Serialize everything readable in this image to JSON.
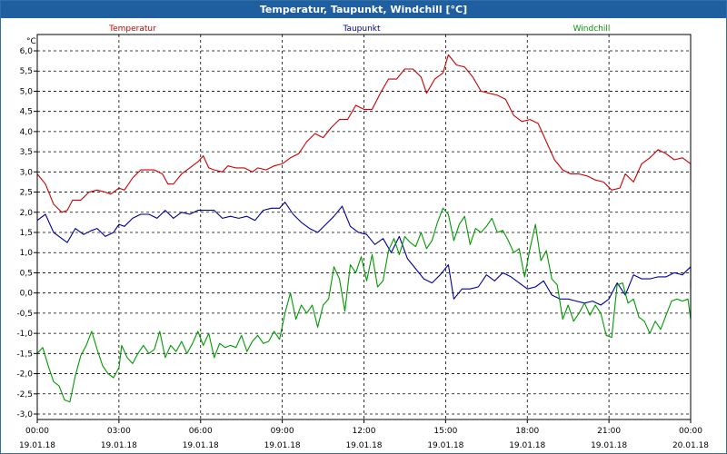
{
  "window": {
    "title": "Temperatur, Taupunkt, Windchill [°C]"
  },
  "chart_data": {
    "type": "line",
    "title": "Temperatur, Taupunkt, Windchill [°C]",
    "ylabel": "°C",
    "ylim": [
      -3.0,
      6.0
    ],
    "yticks": [
      "6,0",
      "5,5",
      "5,0",
      "4,5",
      "4,0",
      "3,5",
      "3,0",
      "2,5",
      "2,0",
      "1,5",
      "1,0",
      "0,5",
      "0,0",
      "-0,5",
      "-1,0",
      "-1,5",
      "-2,0",
      "-2,5",
      "-3,0"
    ],
    "xlim": [
      0,
      24
    ],
    "xticks": [
      {
        "time": "00:00",
        "date": "19.01.18"
      },
      {
        "time": "03:00",
        "date": "19.01.18"
      },
      {
        "time": "06:00",
        "date": "19.01.18"
      },
      {
        "time": "09:00",
        "date": "19.01.18"
      },
      {
        "time": "12:00",
        "date": "19.01.18"
      },
      {
        "time": "15:00",
        "date": "19.01.18"
      },
      {
        "time": "18:00",
        "date": "19.01.18"
      },
      {
        "time": "21:00",
        "date": "19.01.18"
      },
      {
        "time": "00:00",
        "date": "20.01.18"
      }
    ],
    "grid": true,
    "legend_position": "top",
    "series": [
      {
        "name": "Temperatur",
        "color": "#cc0000",
        "points": [
          [
            0,
            2.95
          ],
          [
            0.3,
            2.7
          ],
          [
            0.6,
            2.2
          ],
          [
            0.9,
            2.0
          ],
          [
            1.1,
            2.05
          ],
          [
            1.3,
            2.3
          ],
          [
            1.6,
            2.3
          ],
          [
            1.9,
            2.5
          ],
          [
            2.2,
            2.55
          ],
          [
            2.5,
            2.5
          ],
          [
            2.7,
            2.45
          ],
          [
            3.0,
            2.6
          ],
          [
            3.2,
            2.55
          ],
          [
            3.5,
            2.85
          ],
          [
            3.8,
            3.05
          ],
          [
            4.3,
            3.05
          ],
          [
            4.6,
            2.95
          ],
          [
            4.8,
            2.7
          ],
          [
            5.0,
            2.7
          ],
          [
            5.3,
            2.95
          ],
          [
            5.6,
            3.1
          ],
          [
            5.9,
            3.25
          ],
          [
            6.1,
            3.4
          ],
          [
            6.3,
            3.1
          ],
          [
            6.5,
            3.05
          ],
          [
            6.8,
            3.0
          ],
          [
            7.0,
            3.15
          ],
          [
            7.3,
            3.1
          ],
          [
            7.6,
            3.1
          ],
          [
            7.9,
            3.0
          ],
          [
            8.1,
            3.1
          ],
          [
            8.4,
            3.05
          ],
          [
            8.7,
            3.15
          ],
          [
            9.0,
            3.2
          ],
          [
            9.3,
            3.35
          ],
          [
            9.6,
            3.45
          ],
          [
            9.9,
            3.75
          ],
          [
            10.2,
            3.95
          ],
          [
            10.5,
            3.85
          ],
          [
            10.8,
            4.1
          ],
          [
            11.1,
            4.3
          ],
          [
            11.4,
            4.3
          ],
          [
            11.7,
            4.65
          ],
          [
            12.0,
            4.55
          ],
          [
            12.3,
            4.55
          ],
          [
            12.6,
            4.95
          ],
          [
            12.9,
            5.3
          ],
          [
            13.2,
            5.3
          ],
          [
            13.5,
            5.55
          ],
          [
            13.8,
            5.55
          ],
          [
            14.1,
            5.35
          ],
          [
            14.3,
            4.95
          ],
          [
            14.6,
            5.3
          ],
          [
            14.9,
            5.45
          ],
          [
            15.1,
            5.9
          ],
          [
            15.4,
            5.65
          ],
          [
            15.7,
            5.6
          ],
          [
            16.0,
            5.35
          ],
          [
            16.3,
            5.0
          ],
          [
            16.6,
            4.95
          ],
          [
            16.9,
            4.9
          ],
          [
            17.2,
            4.8
          ],
          [
            17.5,
            4.4
          ],
          [
            17.8,
            4.25
          ],
          [
            18.1,
            4.3
          ],
          [
            18.4,
            4.2
          ],
          [
            18.7,
            3.75
          ],
          [
            19.0,
            3.3
          ],
          [
            19.3,
            3.05
          ],
          [
            19.6,
            2.95
          ],
          [
            19.9,
            2.95
          ],
          [
            20.2,
            2.9
          ],
          [
            20.5,
            2.8
          ],
          [
            20.8,
            2.75
          ],
          [
            21.1,
            2.55
          ],
          [
            21.4,
            2.6
          ],
          [
            21.6,
            2.95
          ],
          [
            21.9,
            2.75
          ],
          [
            22.2,
            3.2
          ],
          [
            22.5,
            3.35
          ],
          [
            22.8,
            3.55
          ],
          [
            23.1,
            3.45
          ],
          [
            23.4,
            3.3
          ],
          [
            23.7,
            3.35
          ],
          [
            24.0,
            3.2
          ],
          [
            24.3,
            2.85
          ],
          [
            24.5,
            2.7
          ]
        ]
      },
      {
        "name": "Taupunkt",
        "color": "#000099",
        "points": [
          [
            0,
            1.8
          ],
          [
            0.3,
            1.95
          ],
          [
            0.6,
            1.5
          ],
          [
            0.9,
            1.35
          ],
          [
            1.1,
            1.25
          ],
          [
            1.4,
            1.6
          ],
          [
            1.7,
            1.45
          ],
          [
            2.0,
            1.55
          ],
          [
            2.2,
            1.6
          ],
          [
            2.5,
            1.4
          ],
          [
            2.8,
            1.5
          ],
          [
            3.0,
            1.7
          ],
          [
            3.2,
            1.65
          ],
          [
            3.5,
            1.85
          ],
          [
            3.8,
            1.95
          ],
          [
            4.1,
            1.95
          ],
          [
            4.4,
            1.85
          ],
          [
            4.7,
            2.05
          ],
          [
            5.0,
            1.85
          ],
          [
            5.3,
            2.0
          ],
          [
            5.6,
            1.95
          ],
          [
            5.9,
            2.05
          ],
          [
            6.2,
            2.05
          ],
          [
            6.5,
            2.05
          ],
          [
            6.8,
            1.85
          ],
          [
            7.1,
            1.9
          ],
          [
            7.4,
            1.85
          ],
          [
            7.7,
            1.9
          ],
          [
            8.0,
            1.8
          ],
          [
            8.3,
            2.05
          ],
          [
            8.6,
            2.1
          ],
          [
            8.9,
            2.1
          ],
          [
            9.1,
            2.25
          ],
          [
            9.4,
            1.95
          ],
          [
            9.7,
            1.75
          ],
          [
            10.0,
            1.6
          ],
          [
            10.3,
            1.5
          ],
          [
            10.6,
            1.7
          ],
          [
            10.9,
            1.9
          ],
          [
            11.2,
            2.15
          ],
          [
            11.5,
            1.65
          ],
          [
            11.8,
            1.5
          ],
          [
            12.1,
            1.45
          ],
          [
            12.4,
            1.2
          ],
          [
            12.7,
            1.35
          ],
          [
            13.0,
            1.0
          ],
          [
            13.3,
            1.4
          ],
          [
            13.6,
            0.85
          ],
          [
            13.9,
            0.6
          ],
          [
            14.2,
            0.35
          ],
          [
            14.5,
            0.25
          ],
          [
            14.8,
            0.45
          ],
          [
            15.1,
            0.7
          ],
          [
            15.3,
            -0.15
          ],
          [
            15.6,
            0.1
          ],
          [
            15.9,
            0.1
          ],
          [
            16.2,
            0.15
          ],
          [
            16.5,
            0.45
          ],
          [
            16.8,
            0.3
          ],
          [
            17.1,
            0.5
          ],
          [
            17.4,
            0.4
          ],
          [
            17.7,
            0.25
          ],
          [
            18.0,
            0.1
          ],
          [
            18.3,
            0.15
          ],
          [
            18.6,
            0.3
          ],
          [
            18.9,
            -0.05
          ],
          [
            19.2,
            -0.15
          ],
          [
            19.5,
            -0.15
          ],
          [
            19.8,
            -0.2
          ],
          [
            20.1,
            -0.25
          ],
          [
            20.4,
            -0.2
          ],
          [
            20.7,
            -0.3
          ],
          [
            21.0,
            -0.15
          ],
          [
            21.3,
            0.25
          ],
          [
            21.6,
            -0.05
          ],
          [
            21.9,
            0.45
          ],
          [
            22.2,
            0.35
          ],
          [
            22.5,
            0.35
          ],
          [
            22.8,
            0.4
          ],
          [
            23.1,
            0.4
          ],
          [
            23.4,
            0.5
          ],
          [
            23.7,
            0.45
          ],
          [
            24.0,
            0.65
          ],
          [
            24.2,
            0.5
          ],
          [
            24.4,
            0.15
          ],
          [
            24.6,
            0.1
          ]
        ]
      },
      {
        "name": "Windchill",
        "color": "#009900",
        "points": [
          [
            0,
            -1.5
          ],
          [
            0.2,
            -1.35
          ],
          [
            0.4,
            -1.8
          ],
          [
            0.6,
            -2.2
          ],
          [
            0.8,
            -2.3
          ],
          [
            1.0,
            -2.65
          ],
          [
            1.2,
            -2.7
          ],
          [
            1.4,
            -2.05
          ],
          [
            1.6,
            -1.55
          ],
          [
            1.8,
            -1.3
          ],
          [
            2.0,
            -0.95
          ],
          [
            2.2,
            -1.4
          ],
          [
            2.4,
            -1.8
          ],
          [
            2.6,
            -2.0
          ],
          [
            2.8,
            -2.1
          ],
          [
            3.0,
            -1.85
          ],
          [
            3.1,
            -1.3
          ],
          [
            3.3,
            -1.6
          ],
          [
            3.5,
            -1.75
          ],
          [
            3.7,
            -1.5
          ],
          [
            3.9,
            -1.3
          ],
          [
            4.1,
            -1.5
          ],
          [
            4.3,
            -1.4
          ],
          [
            4.5,
            -0.95
          ],
          [
            4.7,
            -1.6
          ],
          [
            4.9,
            -1.3
          ],
          [
            5.1,
            -1.45
          ],
          [
            5.3,
            -1.2
          ],
          [
            5.5,
            -1.5
          ],
          [
            5.7,
            -1.25
          ],
          [
            5.9,
            -0.95
          ],
          [
            6.1,
            -1.3
          ],
          [
            6.3,
            -1.0
          ],
          [
            6.5,
            -1.6
          ],
          [
            6.7,
            -1.25
          ],
          [
            6.9,
            -1.35
          ],
          [
            7.1,
            -1.3
          ],
          [
            7.3,
            -1.35
          ],
          [
            7.5,
            -1.05
          ],
          [
            7.7,
            -1.45
          ],
          [
            7.9,
            -1.2
          ],
          [
            8.1,
            -1.05
          ],
          [
            8.3,
            -1.25
          ],
          [
            8.5,
            -1.2
          ],
          [
            8.7,
            -0.95
          ],
          [
            8.9,
            -1.15
          ],
          [
            9.1,
            -0.5
          ],
          [
            9.3,
            0.0
          ],
          [
            9.5,
            -0.65
          ],
          [
            9.7,
            -0.3
          ],
          [
            9.9,
            -0.5
          ],
          [
            10.1,
            -0.3
          ],
          [
            10.3,
            -0.85
          ],
          [
            10.5,
            -0.3
          ],
          [
            10.7,
            -0.15
          ],
          [
            10.9,
            0.65
          ],
          [
            11.1,
            0.35
          ],
          [
            11.3,
            -0.45
          ],
          [
            11.5,
            0.7
          ],
          [
            11.7,
            0.5
          ],
          [
            11.9,
            0.9
          ],
          [
            12.1,
            0.3
          ],
          [
            12.3,
            0.95
          ],
          [
            12.5,
            0.15
          ],
          [
            12.7,
            0.3
          ],
          [
            12.9,
            1.05
          ],
          [
            13.1,
            1.35
          ],
          [
            13.3,
            0.95
          ],
          [
            13.5,
            1.4
          ],
          [
            13.7,
            1.25
          ],
          [
            13.9,
            1.15
          ],
          [
            14.1,
            1.5
          ],
          [
            14.3,
            1.1
          ],
          [
            14.5,
            1.3
          ],
          [
            14.7,
            1.75
          ],
          [
            14.9,
            2.1
          ],
          [
            15.1,
            1.95
          ],
          [
            15.3,
            1.3
          ],
          [
            15.5,
            1.7
          ],
          [
            15.7,
            1.9
          ],
          [
            15.9,
            1.2
          ],
          [
            16.1,
            1.6
          ],
          [
            16.3,
            1.5
          ],
          [
            16.5,
            1.65
          ],
          [
            16.7,
            1.85
          ],
          [
            16.9,
            1.5
          ],
          [
            17.1,
            1.55
          ],
          [
            17.3,
            1.3
          ],
          [
            17.5,
            1.0
          ],
          [
            17.7,
            1.1
          ],
          [
            17.9,
            0.4
          ],
          [
            18.1,
            1.1
          ],
          [
            18.3,
            1.7
          ],
          [
            18.5,
            0.8
          ],
          [
            18.7,
            1.05
          ],
          [
            18.9,
            0.35
          ],
          [
            19.1,
            0.2
          ],
          [
            19.3,
            -0.65
          ],
          [
            19.5,
            -0.3
          ],
          [
            19.7,
            -0.7
          ],
          [
            19.9,
            -0.5
          ],
          [
            20.1,
            -0.25
          ],
          [
            20.3,
            -0.55
          ],
          [
            20.5,
            -0.3
          ],
          [
            20.7,
            -0.5
          ],
          [
            20.9,
            -1.05
          ],
          [
            21.1,
            -1.1
          ],
          [
            21.3,
            0.2
          ],
          [
            21.5,
            0.25
          ],
          [
            21.7,
            -0.25
          ],
          [
            21.9,
            -0.15
          ],
          [
            22.1,
            -0.6
          ],
          [
            22.3,
            -0.7
          ],
          [
            22.5,
            -1.0
          ],
          [
            22.7,
            -0.7
          ],
          [
            22.9,
            -0.9
          ],
          [
            23.1,
            -0.55
          ],
          [
            23.3,
            -0.2
          ],
          [
            23.5,
            -0.15
          ],
          [
            23.7,
            -0.2
          ],
          [
            23.9,
            -0.15
          ],
          [
            24.1,
            -0.65
          ],
          [
            24.3,
            0.3
          ],
          [
            24.5,
            -0.35
          ],
          [
            24.6,
            -0.5
          ]
        ]
      }
    ]
  }
}
